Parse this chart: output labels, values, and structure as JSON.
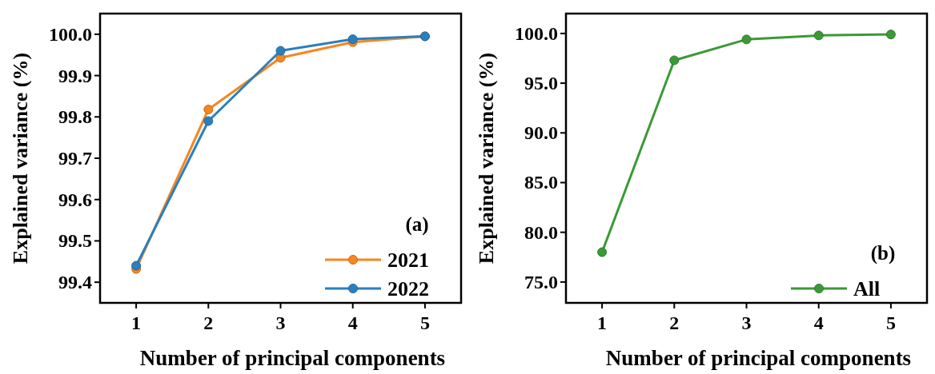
{
  "chart_data": [
    {
      "type": "line",
      "xlabel": "Number of principal components",
      "ylabel": "Explained variance (%)",
      "x": [
        1,
        2,
        3,
        4,
        5
      ],
      "xlim": [
        0.5,
        5.5
      ],
      "xticks": [
        1,
        2,
        3,
        4,
        5
      ],
      "ylim": [
        99.35,
        100.05
      ],
      "yticks": [
        99.4,
        99.5,
        99.6,
        99.7,
        99.8,
        99.9,
        {
          "value": 100,
          "label": "100.0"
        }
      ],
      "grid": false,
      "legend": "bottom right",
      "marker": "circle",
      "line_style": "solid",
      "annotations": [
        "(a)"
      ],
      "series": [
        {
          "name": "2021",
          "color": "#f6861f",
          "values": [
            99.432,
            99.818,
            99.943,
            99.981,
            99.995
          ]
        },
        {
          "name": "2022",
          "color": "#2a7fc0",
          "values": [
            99.44,
            99.79,
            99.96,
            99.988,
            99.995
          ]
        }
      ]
    },
    {
      "type": "line",
      "xlabel": "Number of principal components",
      "ylabel": "Explained variance (%)",
      "x": [
        1,
        2,
        3,
        4,
        5
      ],
      "xlim": [
        0.5,
        5.5
      ],
      "xticks": [
        1,
        2,
        3,
        4,
        5
      ],
      "ylim": [
        72.9,
        102
      ],
      "yticks": [
        {
          "value": 75,
          "label": "75.0"
        },
        {
          "value": 80,
          "label": "80.0"
        },
        {
          "value": 85,
          "label": "85.0"
        },
        {
          "value": 90,
          "label": "90.0"
        },
        {
          "value": 95,
          "label": "95.0"
        },
        {
          "value": 100,
          "label": "100.0"
        }
      ],
      "grid": false,
      "legend": "bottom right",
      "marker": "circle",
      "line_style": "solid",
      "annotations": [
        "(b)"
      ],
      "series": [
        {
          "name": "All",
          "color": "#3a9a35",
          "values": [
            78.0,
            97.3,
            99.4,
            99.8,
            99.9
          ]
        }
      ]
    }
  ]
}
